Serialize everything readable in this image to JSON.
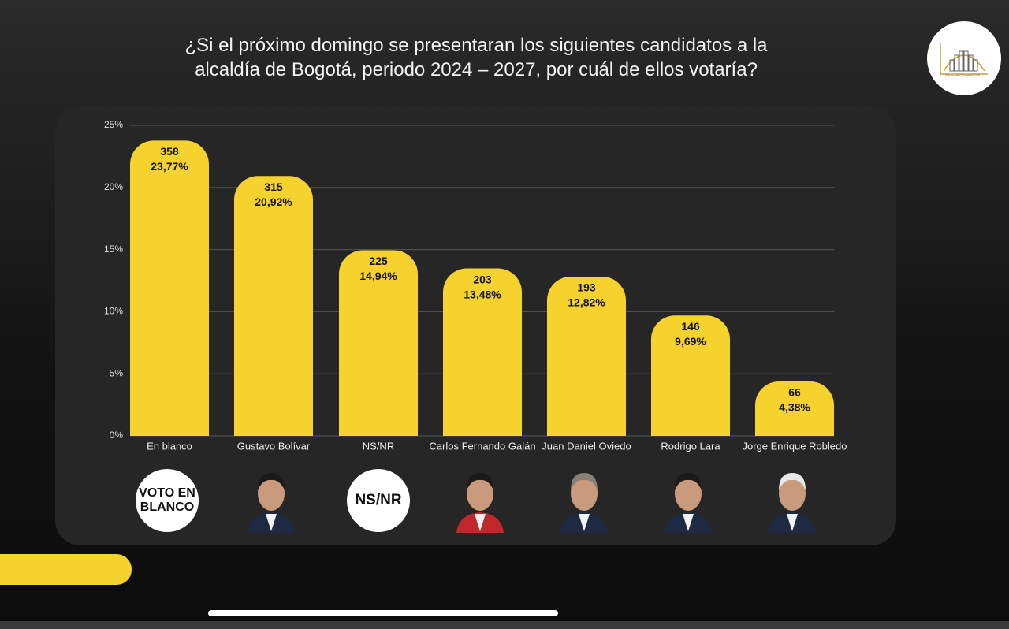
{
  "chart_data": {
    "type": "bar",
    "title": "¿Si el próximo domingo se presentaran los siguientes candidatos a la alcaldía de Bogotá, periodo 2024 – 2027, por cuál de ellos votaría?",
    "categories": [
      "En blanco",
      "Gustavo Bolívar",
      "NS/NR",
      "Carlos Fernando Galán",
      "Juan Daniel Oviedo",
      "Rodrigo Lara",
      "Jorge Enrique Robledo"
    ],
    "values": [
      23.77,
      20.92,
      14.94,
      13.48,
      12.82,
      9.69,
      4.38
    ],
    "value_labels": [
      "23,77%",
      "20,92%",
      "14,94%",
      "13,48%",
      "12,82%",
      "9,69%",
      "4,38%"
    ],
    "counts": [
      358,
      315,
      225,
      203,
      193,
      146,
      66
    ],
    "color": "#f5d22e",
    "ylim": [
      0,
      25
    ],
    "yticks": [
      {
        "value": 0,
        "label": "0%"
      },
      {
        "value": 5,
        "label": "5%"
      },
      {
        "value": 10,
        "label": "10%"
      },
      {
        "value": 15,
        "label": "15%"
      },
      {
        "value": 20,
        "label": "20%"
      },
      {
        "value": 25,
        "label": "25%"
      }
    ],
    "grid": true
  },
  "badges": {
    "blank": "VOTO EN BLANCO",
    "nsnr": "NS/NR"
  },
  "logo_text": "Gauss de Colombia SAS"
}
